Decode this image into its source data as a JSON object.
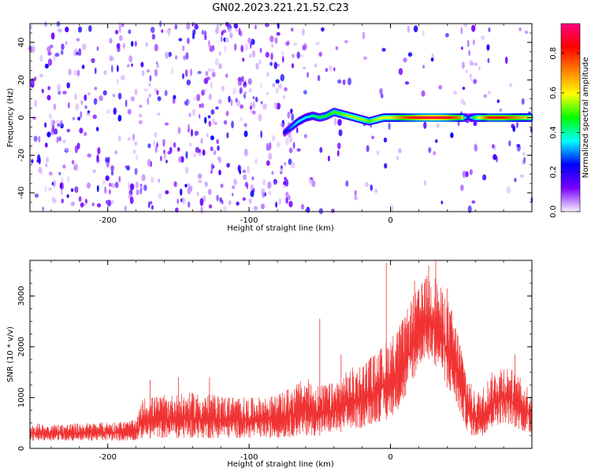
{
  "title": "GN02.2023.221.21.52.C23",
  "chart_data": [
    {
      "type": "heatmap",
      "xlabel": "Height of straight line (km)",
      "ylabel": "Frequency (Hz)",
      "xlim": [
        -255,
        100
      ],
      "ylim": [
        -50,
        50
      ],
      "x_ticks": [
        -200,
        -100,
        0
      ],
      "y_ticks": [
        -40,
        -20,
        0,
        20,
        40
      ],
      "grid": false,
      "colorbar": {
        "label": "Normalized spectral amplitude",
        "range": [
          0,
          0.95
        ],
        "ticks": [
          0.0,
          0.2,
          0.4,
          0.6,
          0.8
        ],
        "colors": [
          "#f8f0ff",
          "#7a00ff",
          "#0000ff",
          "#00ffff",
          "#00ff00",
          "#ffff00",
          "#ff8000",
          "#ff0000",
          "#ff0080"
        ]
      },
      "noise_regions": [
        {
          "x_start": -255,
          "x_end": -65,
          "level": 0.15
        },
        {
          "x_start": -65,
          "x_end": -35,
          "level": 0.06
        },
        {
          "x_start": -35,
          "x_end": 50,
          "level": 0.03
        },
        {
          "x_start": 50,
          "x_end": 60,
          "level": 0.14
        },
        {
          "x_start": 60,
          "x_end": 100,
          "level": 0.05
        }
      ],
      "signal_band": {
        "x": [
          -75,
          -70,
          -65,
          -60,
          -55,
          -50,
          -45,
          -40,
          -35,
          -30,
          -25,
          -20,
          -15,
          -10,
          -5,
          0,
          10,
          20,
          30,
          40,
          50,
          55,
          60,
          70,
          80,
          90,
          100
        ],
        "freq": [
          -8,
          -5,
          -2,
          0,
          1,
          0,
          1,
          3,
          2,
          1,
          0,
          -1,
          -2,
          -1,
          0,
          0,
          0,
          0,
          0,
          0,
          0,
          0,
          0,
          0,
          0,
          0,
          0
        ],
        "amplitude": [
          0.2,
          0.3,
          0.35,
          0.35,
          0.4,
          0.45,
          0.45,
          0.5,
          0.5,
          0.55,
          0.55,
          0.55,
          0.5,
          0.55,
          0.6,
          0.6,
          0.75,
          0.85,
          0.9,
          0.85,
          0.7,
          0.2,
          0.5,
          0.8,
          0.8,
          0.7,
          0.6
        ]
      }
    },
    {
      "type": "line",
      "xlabel": "Height of straight line (km)",
      "ylabel": "SNR (10 * v/v)",
      "xlim": [
        -255,
        100
      ],
      "ylim": [
        0,
        3700
      ],
      "x_ticks": [
        -200,
        -100,
        0
      ],
      "y_ticks": [
        0,
        1000,
        2000,
        3000
      ],
      "grid": false,
      "series": [
        {
          "color": "#f03232",
          "envelope_x": [
            -255,
            -240,
            -220,
            -200,
            -180,
            -175,
            -160,
            -140,
            -120,
            -100,
            -80,
            -60,
            -50,
            -40,
            -30,
            -20,
            -10,
            0,
            10,
            15,
            20,
            25,
            30,
            35,
            40,
            45,
            50,
            55,
            60,
            65,
            70,
            75,
            80,
            85,
            90,
            95,
            100
          ],
          "envelope_upper": [
            500,
            480,
            500,
            520,
            560,
            1000,
            1050,
            1100,
            1050,
            1000,
            1050,
            1400,
            1250,
            1300,
            1550,
            1700,
            1900,
            2200,
            2600,
            3000,
            3150,
            3400,
            3500,
            3200,
            3000,
            2600,
            2100,
            1400,
            1100,
            1200,
            1450,
            1600,
            1700,
            1600,
            1450,
            1300,
            1200
          ],
          "envelope_lower": [
            150,
            150,
            150,
            150,
            150,
            200,
            200,
            200,
            200,
            200,
            200,
            250,
            250,
            300,
            350,
            400,
            500,
            600,
            900,
            1300,
            1600,
            1800,
            1700,
            1500,
            1200,
            900,
            600,
            300,
            200,
            250,
            350,
            450,
            500,
            450,
            400,
            300,
            250
          ],
          "spikes": [
            {
              "x": -170,
              "y": 1350
            },
            {
              "x": -150,
              "y": 1400
            },
            {
              "x": -128,
              "y": 1400
            },
            {
              "x": -50,
              "y": 2550
            },
            {
              "x": -35,
              "y": 1850
            },
            {
              "x": -3,
              "y": 3650
            },
            {
              "x": 17,
              "y": 3300
            },
            {
              "x": 27,
              "y": 3600
            },
            {
              "x": 32,
              "y": 3700
            },
            {
              "x": 40,
              "y": 3150
            },
            {
              "x": 88,
              "y": 1850
            }
          ]
        }
      ]
    }
  ]
}
